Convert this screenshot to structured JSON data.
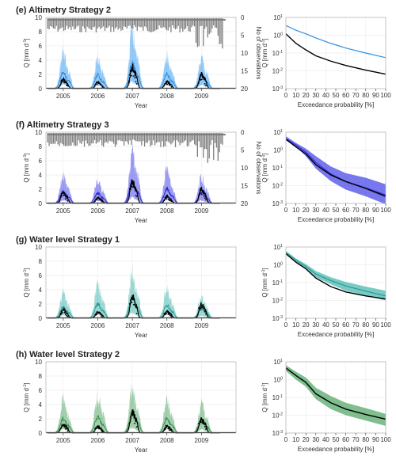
{
  "panels": [
    {
      "id": "e",
      "title": "(e) Altimetry Strategy 2",
      "color": "#3d9ff0",
      "curve_color": "#2f8fe0",
      "band_rel": [
        0.12,
        0.55
      ],
      "fdc_upper": [
        5.0,
        2.8,
        1.6,
        0.9,
        0.45,
        0.25,
        0.14,
        0.08
      ],
      "fdc_lower": [
        5.0,
        2.8,
        1.6,
        0.9,
        0.45,
        0.25,
        0.14,
        0.08
      ],
      "fdc_mean": [
        3.5,
        1.9,
        1.2,
        0.7,
        0.35,
        0.19,
        0.1,
        0.055
      ],
      "fdc_obs": [
        1.2,
        0.35,
        0.15,
        0.07,
        0.035,
        0.02,
        0.011,
        0.0065
      ],
      "fdc_band": false
    },
    {
      "id": "f",
      "title": "(f)  Altimetry Strategy 3",
      "color": "#4a4ae8",
      "curve_color": "#2a2acf",
      "band_rel": [
        0.12,
        0.55
      ],
      "fdc_upper": [
        6.0,
        2.5,
        1.2,
        0.45,
        0.12,
        0.05,
        0.028,
        0.012
      ],
      "fdc_lower": [
        3.5,
        1.5,
        0.45,
        0.09,
        0.018,
        0.006,
        0.0025,
        0.0009
      ],
      "fdc_mean": [
        4.3,
        1.9,
        0.75,
        0.2,
        0.045,
        0.017,
        0.0075,
        0.003
      ],
      "fdc_obs": [
        4.0,
        1.5,
        0.6,
        0.15,
        0.04,
        0.017,
        0.007,
        0.0025
      ],
      "fdc_band": true
    },
    {
      "id": "g",
      "title": "(g) Water level Strategy 1",
      "color": "#4bb8b0",
      "curve_color": "#2a9a92",
      "band_rel": [
        0.12,
        0.55
      ],
      "fdc_upper": [
        6.0,
        2.3,
        1.1,
        0.45,
        0.2,
        0.11,
        0.06,
        0.035
      ],
      "fdc_lower": [
        4.0,
        1.4,
        0.55,
        0.2,
        0.08,
        0.035,
        0.018,
        0.01
      ],
      "fdc_mean": [
        5.0,
        1.8,
        0.8,
        0.3,
        0.13,
        0.065,
        0.033,
        0.018
      ],
      "fdc_obs": [
        4.2,
        1.4,
        0.6,
        0.18,
        0.06,
        0.03,
        0.018,
        0.012
      ],
      "fdc_band": true
    },
    {
      "id": "h",
      "title": "(h) Water level Strategy 2",
      "color": "#55a86a",
      "curve_color": "#3b8f52",
      "band_rel": [
        0.12,
        0.55
      ],
      "fdc_upper": [
        6.5,
        2.8,
        1.3,
        0.35,
        0.12,
        0.05,
        0.025,
        0.012
      ],
      "fdc_lower": [
        3.0,
        1.0,
        0.4,
        0.08,
        0.022,
        0.01,
        0.005,
        0.0025
      ],
      "fdc_mean": [
        4.5,
        1.7,
        0.7,
        0.16,
        0.05,
        0.022,
        0.011,
        0.006
      ],
      "fdc_obs": [
        4.5,
        1.7,
        0.7,
        0.16,
        0.05,
        0.022,
        0.011,
        0.006
      ],
      "fdc_band": true
    }
  ],
  "labels": {
    "q_axis": "Q [mm d",
    "q_sup": "-1",
    "q_close": "]",
    "year_axis": "Year",
    "obs_axis": "No of observations",
    "exceed_axis": "Exceedance probability [%]"
  },
  "ticks": {
    "q": [
      "0",
      "2",
      "4",
      "6",
      "8",
      "10"
    ],
    "obs": [
      "0",
      "5",
      "10",
      "15",
      "20"
    ],
    "years": [
      "2005",
      "2006",
      "2007",
      "2008",
      "2009"
    ],
    "exceed": [
      "0",
      "10",
      "20",
      "30",
      "40",
      "50",
      "60",
      "70",
      "80",
      "90",
      "100"
    ],
    "log_base": "10",
    "log_exp": [
      "1",
      "0",
      "-1",
      "-2",
      "-3"
    ]
  },
  "chart_data": [
    {
      "type": "area",
      "title": "(e) Altimetry Strategy 2",
      "xlabel": "Year",
      "ylabel": "Q [mm d-1]",
      "y2label": "No of observations",
      "ylim": [
        0,
        10
      ],
      "y2lim": [
        20,
        0
      ],
      "categories": [
        "2005",
        "2006",
        "2007",
        "2008",
        "2009"
      ],
      "series": [
        {
          "values": [
            5.0,
            4.2,
            8.0,
            4.5,
            4.0
          ]
        },
        {
          "values": [
            1.3,
            0.9,
            3.0,
            1.0,
            2.0
          ]
        }
      ],
      "grid": true
    },
    {
      "type": "line",
      "xlabel": "Exceedance probability [%]",
      "ylabel": "Q [mm d-1]",
      "xlim": [
        0,
        100
      ],
      "ylim": [
        0.001,
        10
      ],
      "yscale": "log",
      "x": [
        0,
        10,
        20,
        30,
        45,
        60,
        80,
        100
      ],
      "series": [
        {
          "values": [
            3.5,
            1.9,
            1.2,
            0.7,
            0.35,
            0.19,
            0.1,
            0.055
          ]
        },
        {
          "values": [
            1.2,
            0.35,
            0.15,
            0.07,
            0.035,
            0.02,
            0.011,
            0.0065
          ]
        }
      ],
      "grid": true
    },
    {
      "type": "area",
      "title": "(f)  Altimetry Strategy 3",
      "xlabel": "Year",
      "ylabel": "Q [mm d-1]",
      "y2label": "No of observations",
      "ylim": [
        0,
        10
      ],
      "y2lim": [
        20,
        0
      ],
      "categories": [
        "2005",
        "2006",
        "2007",
        "2008",
        "2009"
      ],
      "series": [
        {
          "values": [
            3.8,
            3.2,
            7.0,
            4.5,
            3.5
          ]
        },
        {
          "values": [
            1.5,
            0.8,
            3.0,
            1.0,
            2.0
          ]
        }
      ],
      "grid": true
    },
    {
      "type": "line",
      "xlabel": "Exceedance probability [%]",
      "ylabel": "Q [mm d-1]",
      "xlim": [
        0,
        100
      ],
      "ylim": [
        0.001,
        10
      ],
      "yscale": "log",
      "x": [
        0,
        10,
        20,
        30,
        45,
        60,
        80,
        100
      ],
      "series": [
        {
          "values": [
            4.3,
            1.9,
            0.75,
            0.2,
            0.045,
            0.017,
            0.0075,
            0.003
          ]
        },
        {
          "values": [
            4.0,
            1.5,
            0.6,
            0.15,
            0.04,
            0.017,
            0.007,
            0.0025
          ]
        }
      ],
      "grid": true
    },
    {
      "type": "area",
      "title": "(g) Water level Strategy 1",
      "xlabel": "Year",
      "ylabel": "Q [mm d-1]",
      "ylim": [
        0,
        10
      ],
      "categories": [
        "2005",
        "2006",
        "2007",
        "2008",
        "2009"
      ],
      "series": [
        {
          "values": [
            3.5,
            4.5,
            6.5,
            4.0,
            3.0
          ]
        },
        {
          "values": [
            1.2,
            0.9,
            3.0,
            1.0,
            2.0
          ]
        }
      ],
      "grid": true
    },
    {
      "type": "line",
      "xlabel": "Exceedance probability [%]",
      "ylabel": "Q [mm d-1]",
      "xlim": [
        0,
        100
      ],
      "ylim": [
        0.001,
        10
      ],
      "yscale": "log",
      "x": [
        0,
        10,
        20,
        30,
        45,
        60,
        80,
        100
      ],
      "series": [
        {
          "values": [
            5.0,
            1.8,
            0.8,
            0.3,
            0.13,
            0.065,
            0.033,
            0.018
          ]
        },
        {
          "values": [
            4.2,
            1.4,
            0.6,
            0.18,
            0.06,
            0.03,
            0.018,
            0.012
          ]
        }
      ],
      "grid": true
    },
    {
      "type": "area",
      "title": "(h) Water level Strategy 2",
      "xlabel": "Year",
      "ylabel": "Q [mm d-1]",
      "ylim": [
        0,
        10
      ],
      "categories": [
        "2005",
        "2006",
        "2007",
        "2008",
        "2009"
      ],
      "series": [
        {
          "values": [
            4.5,
            5.0,
            6.5,
            4.5,
            4.0
          ]
        },
        {
          "values": [
            1.3,
            0.9,
            3.0,
            1.0,
            2.0
          ]
        }
      ],
      "grid": true
    },
    {
      "type": "line",
      "xlabel": "Exceedance probability [%]",
      "ylabel": "Q [mm d-1]",
      "xlim": [
        0,
        100
      ],
      "ylim": [
        0.001,
        10
      ],
      "yscale": "log",
      "x": [
        0,
        10,
        20,
        30,
        45,
        60,
        80,
        100
      ],
      "series": [
        {
          "values": [
            4.5,
            1.7,
            0.7,
            0.16,
            0.05,
            0.022,
            0.011,
            0.006
          ]
        },
        {
          "values": [
            4.5,
            1.7,
            0.7,
            0.16,
            0.05,
            0.022,
            0.011,
            0.006
          ]
        }
      ],
      "grid": true
    }
  ]
}
